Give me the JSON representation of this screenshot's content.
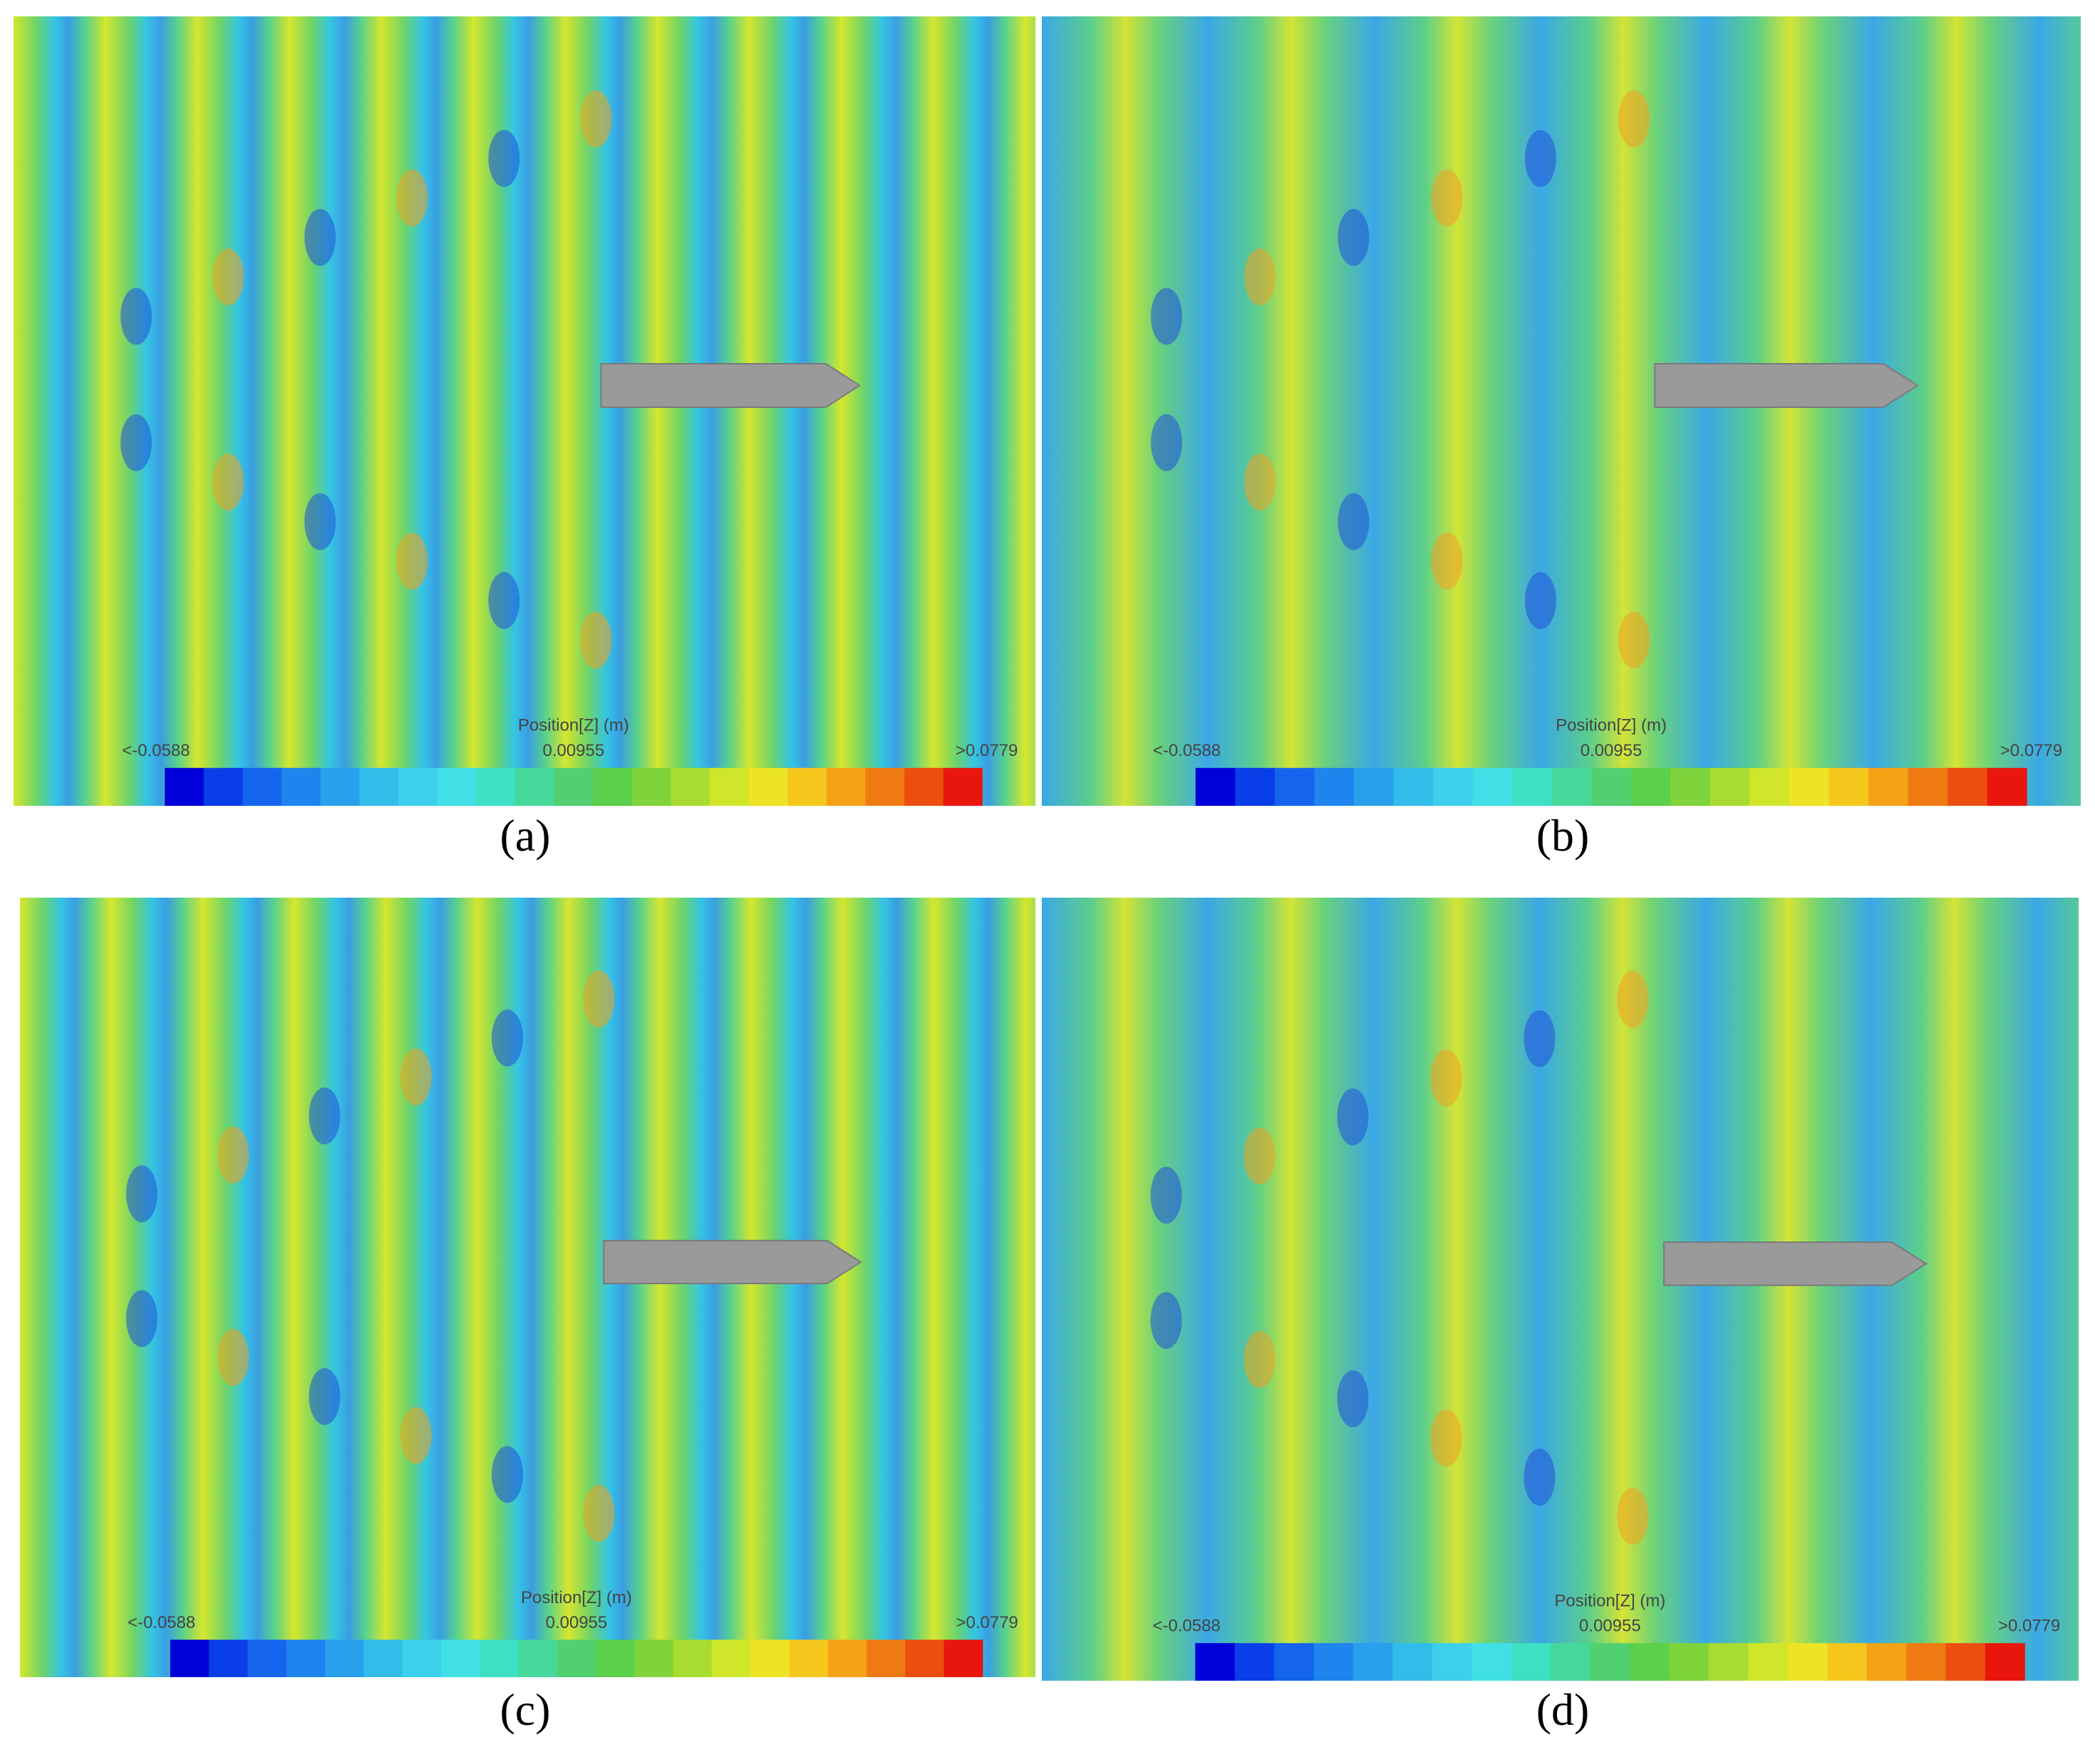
{
  "panels": [
    {
      "label": "(a)",
      "colorbar": {
        "title": "Position[Z] (m)",
        "min": "<-0.0588",
        "mid": "0.00955",
        "max": ">0.0779"
      }
    },
    {
      "label": "(b)",
      "colorbar": {
        "title": "Position[Z] (m)",
        "min": "<-0.0588",
        "mid": "0.00955",
        "max": ">0.0779"
      }
    },
    {
      "label": "(c)",
      "colorbar": {
        "title": "Position[Z] (m)",
        "min": "<-0.0588",
        "mid": "0.00955",
        "max": ">0.0779"
      }
    },
    {
      "label": "(d)",
      "colorbar": {
        "title": "Position[Z] (m)",
        "min": "<-0.0588",
        "mid": "0.00955",
        "max": ">0.0779"
      }
    }
  ]
}
